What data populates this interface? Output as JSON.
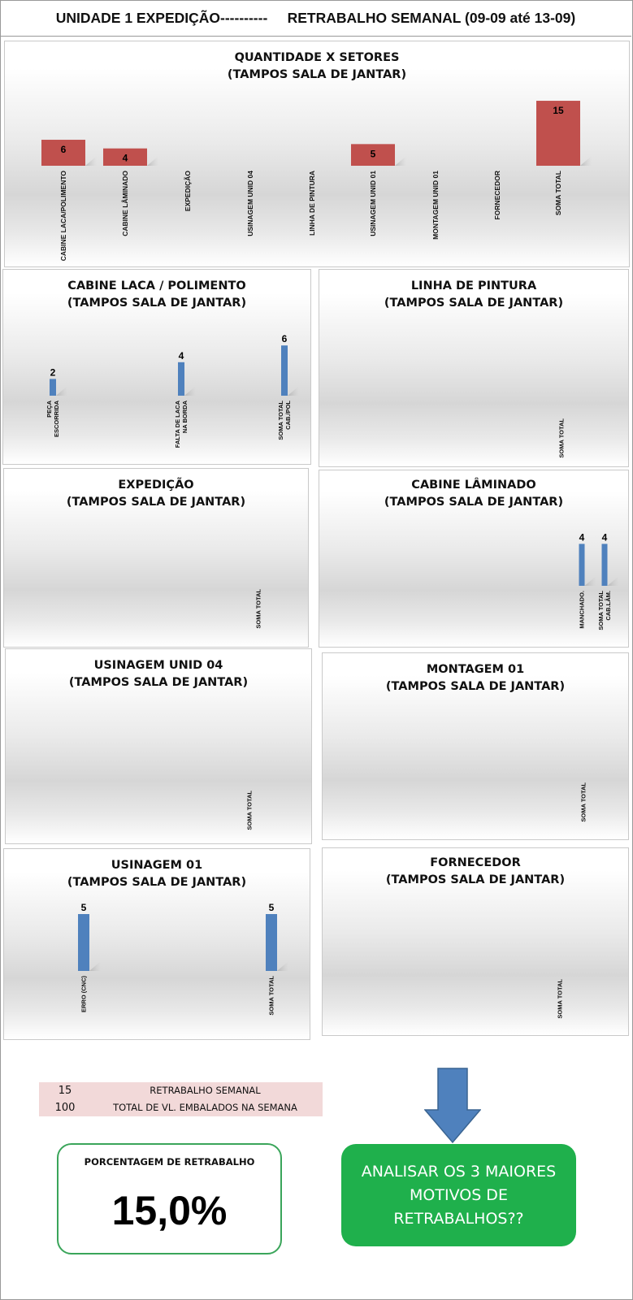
{
  "header": {
    "left": "UNIDADE 1 EXPEDIÇÃO----------",
    "right": "RETRABALHO SEMANAL (09-09 até 13-09)"
  },
  "colors": {
    "main_bar": "#c0504d",
    "sub_bar": "#4f81bd",
    "info_bg": "#f2d9d9",
    "green": "#1fb04c",
    "arrow": "#4f81bd"
  },
  "chart_data": [
    {
      "id": "main",
      "type": "bar",
      "title": "QUANTIDADE X SETORES",
      "subtitle": "(TAMPOS SALA DE JANTAR)",
      "categories": [
        "CABINE LACA/POLIMENTO",
        "CABINE LÂMINADO",
        "EXPEDIÇÃO",
        "USINAGEM UNID 04",
        "LINHA DE PINTURA",
        "USINAGEM UNID 01",
        "MONTAGEM UNID 01",
        "FORNECEDOR",
        "SOMA TOTAL"
      ],
      "values": [
        6,
        4,
        null,
        null,
        null,
        5,
        null,
        null,
        15
      ]
    },
    {
      "id": "laca",
      "type": "bar",
      "title": "CABINE LACA / POLIMENTO",
      "subtitle": "(TAMPOS SALA DE JANTAR)",
      "categories": [
        "PEÇA ESCORRIDA",
        "FALTA DE LACA NA BORDA",
        "SOMA TOTAL CAB./POL"
      ],
      "values": [
        2,
        4,
        6
      ]
    },
    {
      "id": "pintura",
      "type": "bar",
      "title": "LINHA DE PINTURA",
      "subtitle": "(TAMPOS SALA DE JANTAR)",
      "categories": [
        "SOMA TOTAL"
      ],
      "values": [
        null
      ]
    },
    {
      "id": "expedicao",
      "type": "bar",
      "title": "EXPEDIÇÃO",
      "subtitle": "(TAMPOS SALA DE JANTAR)",
      "categories": [
        "SOMA TOTAL"
      ],
      "values": [
        null
      ]
    },
    {
      "id": "laminado",
      "type": "bar",
      "title": "CABINE LÂMINADO",
      "subtitle": "(TAMPOS SALA DE JANTAR)",
      "categories": [
        "MANCHADO.",
        "SOMA TOTAL CAB.LÂM."
      ],
      "values": [
        4,
        4
      ]
    },
    {
      "id": "usinagem04",
      "type": "bar",
      "title": "USINAGEM UNID 04",
      "subtitle": "(TAMPOS SALA DE JANTAR)",
      "categories": [
        "SOMA TOTAL"
      ],
      "values": [
        null
      ]
    },
    {
      "id": "montagem",
      "type": "bar",
      "title": "MONTAGEM 01",
      "subtitle": "(TAMPOS SALA DE JANTAR)",
      "categories": [
        "SOMA TOTAL"
      ],
      "values": [
        null
      ]
    },
    {
      "id": "usinagem01",
      "type": "bar",
      "title": "USINAGEM 01",
      "subtitle": "(TAMPOS SALA DE JANTAR)",
      "categories": [
        "ERRO (CNC)",
        "SOMA TOTAL"
      ],
      "values": [
        5,
        5
      ]
    },
    {
      "id": "fornecedor",
      "type": "bar",
      "title": "FORNECEDOR",
      "subtitle": "(TAMPOS SALA DE JANTAR)",
      "categories": [
        "SOMA TOTAL"
      ],
      "values": [
        null
      ]
    }
  ],
  "summary": {
    "rows": [
      {
        "value": "15",
        "label": "RETRABALHO SEMANAL"
      },
      {
        "value": "100",
        "label": "TOTAL DE VL. EMBALADOS NA SEMANA"
      }
    ],
    "percent_label": "PORCENTAGEM DE RETRABALHO",
    "percent_value": "15,0%",
    "callout": "ANALISAR OS 3 MAIORES\nMOTIVOS DE\nRETRABALHOS??"
  }
}
